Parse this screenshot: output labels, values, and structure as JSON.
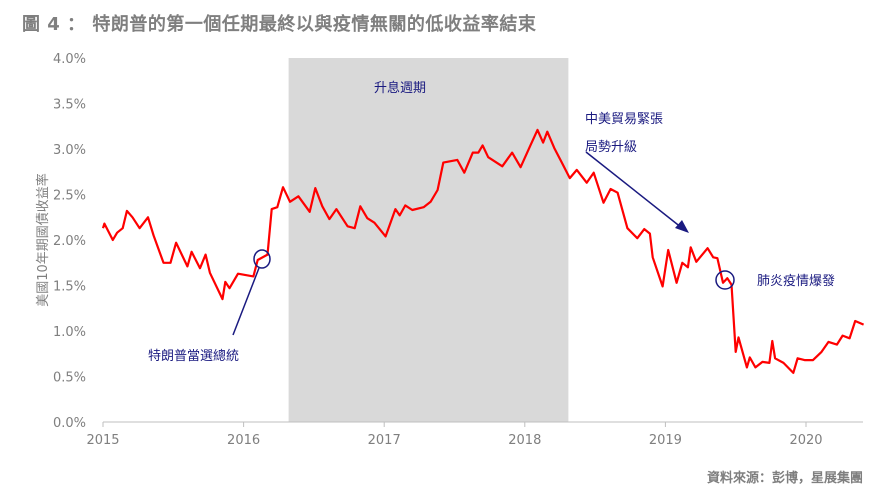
{
  "title": "圖 4 ： 特朗普的第一個任期最終以與疫情無關的低收益率結束",
  "source": "資料來源：彭博，星展集團",
  "chart_data": {
    "type": "line",
    "title": "圖 4 ： 特朗普的第一個任期最終以與疫情無關的低收益率結束",
    "xlabel": "",
    "ylabel": "美國10年期國債收益率",
    "xlim": [
      2015,
      2020.4
    ],
    "ylim": [
      0,
      4
    ],
    "x_ticks": [
      2015,
      2016,
      2017,
      2018,
      2019,
      2020
    ],
    "x_tick_labels": [
      "2015",
      "2016",
      "2017",
      "2018",
      "2019",
      "2020"
    ],
    "y_ticks": [
      0,
      0.5,
      1,
      1.5,
      2,
      2.5,
      3,
      3.5,
      4
    ],
    "y_tick_labels": [
      "0.0%",
      "0.5%",
      "1.0%",
      "1.5%",
      "2.0%",
      "2.5%",
      "3.0%",
      "3.5%",
      "4.0%"
    ],
    "grid": false,
    "colors": {
      "line": "#ff0000",
      "shade": "#d9d9d9",
      "annotation": "#1a1a80"
    },
    "shaded_region": {
      "label": "升息週期",
      "x": [
        2016.32,
        2018.31
      ]
    },
    "series": [
      {
        "name": "美國10年期國債收益率",
        "x": [
          2015.0,
          2015.01,
          2015.07,
          2015.1,
          2015.14,
          2015.17,
          2015.21,
          2015.26,
          2015.32,
          2015.36,
          2015.43,
          2015.48,
          2015.52,
          2015.6,
          2015.63,
          2015.69,
          2015.73,
          2015.76,
          2015.85,
          2015.87,
          2015.9,
          2015.96,
          2016.07,
          2016.1,
          2016.17,
          2016.2,
          2016.24,
          2016.28,
          2016.33,
          2016.39,
          2016.47,
          2016.51,
          2016.56,
          2016.61,
          2016.66,
          2016.74,
          2016.79,
          2016.83,
          2016.88,
          2016.93,
          2017.01,
          2017.08,
          2017.11,
          2017.15,
          2017.2,
          2017.28,
          2017.33,
          2017.38,
          2017.42,
          2017.52,
          2017.57,
          2017.63,
          2017.67,
          2017.7,
          2017.74,
          2017.84,
          2017.91,
          2017.97,
          2018.04,
          2018.09,
          2018.13,
          2018.16,
          2018.21,
          2018.26,
          2018.32,
          2018.37,
          2018.44,
          2018.49,
          2018.56,
          2018.61,
          2018.66,
          2018.73,
          2018.8,
          2018.85,
          2018.89,
          2018.91,
          2018.98,
          2019.02,
          2019.08,
          2019.12,
          2019.16,
          2019.18,
          2019.22,
          2019.3,
          2019.34,
          2019.37,
          2019.41,
          2019.44,
          2019.47,
          2019.5,
          2019.52,
          2019.58,
          2019.6,
          2019.64,
          2019.69,
          2019.74,
          2019.76,
          2019.78,
          2019.84,
          2019.91,
          2019.94,
          2019.99,
          2020.05,
          2020.11,
          2020.16,
          2020.22,
          2020.26,
          2020.31,
          2020.35,
          2020.41
        ],
        "values": [
          2.13,
          2.18,
          2.0,
          2.08,
          2.13,
          2.32,
          2.25,
          2.13,
          2.25,
          2.05,
          1.75,
          1.75,
          1.97,
          1.71,
          1.87,
          1.69,
          1.84,
          1.64,
          1.35,
          1.54,
          1.47,
          1.63,
          1.6,
          1.78,
          1.84,
          2.34,
          2.36,
          2.58,
          2.42,
          2.48,
          2.31,
          2.57,
          2.37,
          2.23,
          2.34,
          2.15,
          2.13,
          2.37,
          2.24,
          2.19,
          2.04,
          2.34,
          2.27,
          2.38,
          2.33,
          2.36,
          2.42,
          2.55,
          2.85,
          2.88,
          2.74,
          2.96,
          2.96,
          3.04,
          2.91,
          2.81,
          2.96,
          2.8,
          3.04,
          3.21,
          3.07,
          3.19,
          3.01,
          2.86,
          2.68,
          2.77,
          2.63,
          2.74,
          2.41,
          2.56,
          2.52,
          2.13,
          2.02,
          2.12,
          2.07,
          1.81,
          1.49,
          1.89,
          1.53,
          1.75,
          1.7,
          1.92,
          1.76,
          1.91,
          1.81,
          1.8,
          1.53,
          1.58,
          1.51,
          0.77,
          0.93,
          0.6,
          0.71,
          0.6,
          0.66,
          0.65,
          0.89,
          0.7,
          0.65,
          0.54,
          0.7,
          0.68,
          0.68,
          0.77,
          0.88,
          0.85,
          0.95,
          0.92,
          1.11,
          1.07
        ]
      }
    ],
    "annotations": [
      {
        "text": "升息週期"
      },
      {
        "text": "特朗普當選總統",
        "x": 2016.13,
        "y": 1.78
      },
      {
        "lines": [
          "中美貿易緊張",
          "局勢升級"
        ]
      },
      {
        "text": "肺炎疫情爆發",
        "x": 2019.43,
        "y": 1.56
      }
    ]
  }
}
